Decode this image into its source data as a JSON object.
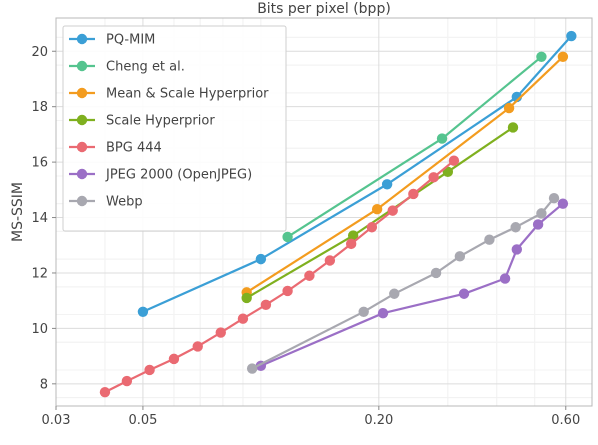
{
  "chart_data": {
    "type": "line",
    "xlabel": "Bits per pixel (bpp)",
    "ylabel": "MS-SSIM",
    "x_scale": "log",
    "xlim": [
      0.03,
      0.7
    ],
    "ylim": [
      7.2,
      21.2
    ],
    "x_ticks": [
      {
        "value": 0.03,
        "label": "0.03"
      },
      {
        "value": 0.05,
        "label": "0.05"
      },
      {
        "value": 0.2,
        "label": "0.20"
      },
      {
        "value": 0.6,
        "label": "0.60"
      }
    ],
    "y_ticks": [
      {
        "value": 8,
        "label": "8"
      },
      {
        "value": 10,
        "label": "10"
      },
      {
        "value": 12,
        "label": "12"
      },
      {
        "value": 14,
        "label": "14"
      },
      {
        "value": 16,
        "label": "16"
      },
      {
        "value": 18,
        "label": "18"
      },
      {
        "value": 20,
        "label": "20"
      }
    ],
    "grid": true,
    "legend_position": "top-left",
    "series": [
      {
        "name": "PQ-MIM",
        "color": "#3b9fd6",
        "points": [
          [
            0.05,
            10.6
          ],
          [
            0.1,
            12.5
          ],
          [
            0.21,
            15.2
          ],
          [
            0.45,
            18.35
          ],
          [
            0.62,
            20.55
          ]
        ]
      },
      {
        "name": "Cheng et al.",
        "color": "#55c48f",
        "points": [
          [
            0.117,
            13.3
          ],
          [
            0.29,
            16.85
          ],
          [
            0.52,
            19.8
          ]
        ]
      },
      {
        "name": "Mean & Scale Hyperprior",
        "color": "#f39c1f",
        "points": [
          [
            0.092,
            11.3
          ],
          [
            0.198,
            14.3
          ],
          [
            0.43,
            17.95
          ],
          [
            0.59,
            19.8
          ]
        ]
      },
      {
        "name": "Scale Hyperprior",
        "color": "#7fb01f",
        "points": [
          [
            0.092,
            11.1
          ],
          [
            0.172,
            13.35
          ],
          [
            0.3,
            15.65
          ],
          [
            0.44,
            17.25
          ]
        ]
      },
      {
        "name": "BPG 444",
        "color": "#ea6a72",
        "points": [
          [
            0.04,
            7.7
          ],
          [
            0.0455,
            8.1
          ],
          [
            0.052,
            8.5
          ],
          [
            0.06,
            8.9
          ],
          [
            0.069,
            9.35
          ],
          [
            0.079,
            9.85
          ],
          [
            0.09,
            10.35
          ],
          [
            0.103,
            10.85
          ],
          [
            0.117,
            11.35
          ],
          [
            0.133,
            11.9
          ],
          [
            0.15,
            12.45
          ],
          [
            0.17,
            13.05
          ],
          [
            0.192,
            13.65
          ],
          [
            0.217,
            14.25
          ],
          [
            0.245,
            14.85
          ],
          [
            0.276,
            15.45
          ],
          [
            0.311,
            16.05
          ]
        ]
      },
      {
        "name": "JPEG 2000 (OpenJPEG)",
        "color": "#9b6fc6",
        "points": [
          [
            0.1,
            8.65
          ],
          [
            0.205,
            10.55
          ],
          [
            0.33,
            11.25
          ],
          [
            0.42,
            11.8
          ],
          [
            0.45,
            12.85
          ],
          [
            0.51,
            13.75
          ],
          [
            0.59,
            14.5
          ]
        ]
      },
      {
        "name": "Webp",
        "color": "#a8a8b0",
        "points": [
          [
            0.095,
            8.55
          ],
          [
            0.183,
            10.6
          ],
          [
            0.219,
            11.25
          ],
          [
            0.28,
            12.0
          ],
          [
            0.322,
            12.6
          ],
          [
            0.383,
            13.2
          ],
          [
            0.447,
            13.65
          ],
          [
            0.52,
            14.15
          ],
          [
            0.56,
            14.7
          ]
        ]
      }
    ]
  }
}
